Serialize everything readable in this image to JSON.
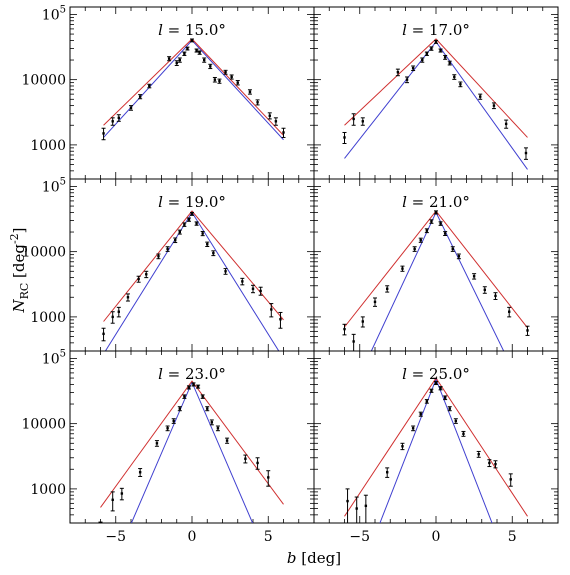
{
  "figure": {
    "xlabel": "b [deg]",
    "ylabel": "N_RC [deg^-2]"
  },
  "style": {
    "red_model": "#d03030",
    "blue_model": "#4040d0",
    "data_color": "#000000"
  },
  "chart_data": [
    {
      "type": "scatter",
      "title": "l = 15.0°",
      "xlim": [
        -8,
        8
      ],
      "ylim": [
        300,
        130000
      ],
      "yscale": "log",
      "xticks": [
        -5,
        0,
        5
      ],
      "yticks_labeled": [
        1000,
        10000,
        100000
      ],
      "points": [
        {
          "x": -5.8,
          "y": 1500,
          "err": 300
        },
        {
          "x": -5.2,
          "y": 2300,
          "err": 300
        },
        {
          "x": -4.8,
          "y": 2600,
          "err": 300
        },
        {
          "x": -4.0,
          "y": 3700,
          "err": 300
        },
        {
          "x": -3.4,
          "y": 5500,
          "err": 400
        },
        {
          "x": -2.8,
          "y": 8000,
          "err": 500
        },
        {
          "x": -1.5,
          "y": 21000,
          "err": 1500
        },
        {
          "x": -1.0,
          "y": 18000,
          "err": 1500
        },
        {
          "x": -0.8,
          "y": 20000,
          "err": 1500
        },
        {
          "x": -0.5,
          "y": 25000,
          "err": 1500
        },
        {
          "x": -0.3,
          "y": 30000,
          "err": 1500
        },
        {
          "x": 0.0,
          "y": 40000,
          "err": 2000
        },
        {
          "x": 0.3,
          "y": 28000,
          "err": 1500
        },
        {
          "x": 0.5,
          "y": 26000,
          "err": 1500
        },
        {
          "x": 0.8,
          "y": 20000,
          "err": 1500
        },
        {
          "x": 1.2,
          "y": 16000,
          "err": 1200
        },
        {
          "x": 1.5,
          "y": 10000,
          "err": 800
        },
        {
          "x": 1.8,
          "y": 9500,
          "err": 700
        },
        {
          "x": 2.2,
          "y": 13000,
          "err": 900
        },
        {
          "x": 2.6,
          "y": 11000,
          "err": 800
        },
        {
          "x": 3.0,
          "y": 9000,
          "err": 700
        },
        {
          "x": 3.8,
          "y": 6500,
          "err": 500
        },
        {
          "x": 4.3,
          "y": 4500,
          "err": 400
        },
        {
          "x": 5.1,
          "y": 2800,
          "err": 300
        },
        {
          "x": 5.5,
          "y": 2300,
          "err": 300
        },
        {
          "x": 6.0,
          "y": 1550,
          "err": 250
        }
      ],
      "red_model": {
        "peak": 42000,
        "knots": [
          {
            "x": -5.8,
            "y": 2000
          },
          {
            "x": 6.0,
            "y": 1400
          }
        ]
      },
      "blue_model": {
        "peak": 40000,
        "knots": [
          {
            "x": -5.8,
            "y": 1300
          },
          {
            "x": 6.0,
            "y": 1200
          }
        ]
      }
    },
    {
      "type": "scatter",
      "title": "l = 17.0°",
      "xlim": [
        -8,
        8
      ],
      "ylim": [
        300,
        130000
      ],
      "yscale": "log",
      "xticks": [
        -5,
        0,
        5
      ],
      "yticks_labeled": [
        1000,
        10000,
        100000
      ],
      "points": [
        {
          "x": -6.0,
          "y": 1300,
          "err": 250
        },
        {
          "x": -5.4,
          "y": 2500,
          "err": 500
        },
        {
          "x": -4.8,
          "y": 2300,
          "err": 300
        },
        {
          "x": -2.5,
          "y": 13000,
          "err": 1500
        },
        {
          "x": -1.9,
          "y": 10000,
          "err": 1000
        },
        {
          "x": -1.5,
          "y": 15000,
          "err": 1200
        },
        {
          "x": -0.9,
          "y": 20000,
          "err": 1500
        },
        {
          "x": -0.6,
          "y": 25000,
          "err": 1500
        },
        {
          "x": -0.3,
          "y": 30000,
          "err": 1800
        },
        {
          "x": 0.0,
          "y": 38000,
          "err": 2000
        },
        {
          "x": 0.3,
          "y": 28000,
          "err": 1500
        },
        {
          "x": 0.6,
          "y": 22000,
          "err": 1500
        },
        {
          "x": 0.9,
          "y": 18000,
          "err": 1200
        },
        {
          "x": 1.2,
          "y": 11000,
          "err": 900
        },
        {
          "x": 1.6,
          "y": 8500,
          "err": 700
        },
        {
          "x": 2.9,
          "y": 5500,
          "err": 500
        },
        {
          "x": 3.8,
          "y": 4000,
          "err": 400
        },
        {
          "x": 4.6,
          "y": 2100,
          "err": 300
        },
        {
          "x": 5.9,
          "y": 750,
          "err": 150
        }
      ],
      "red_model": {
        "peak": 42000,
        "knots": [
          {
            "x": -6.0,
            "y": 2000
          },
          {
            "x": 6.0,
            "y": 1300
          }
        ]
      },
      "blue_model": {
        "peak": 38000,
        "knots": [
          {
            "x": -6.0,
            "y": 620
          },
          {
            "x": 6.0,
            "y": 420
          }
        ]
      }
    },
    {
      "type": "scatter",
      "title": "l = 19.0°",
      "xlim": [
        -8,
        8
      ],
      "ylim": [
        300,
        130000
      ],
      "yscale": "log",
      "xticks": [
        -5,
        0,
        5
      ],
      "yticks_labeled": [
        1000,
        10000,
        100000
      ],
      "points": [
        {
          "x": -5.8,
          "y": 550,
          "err": 120
        },
        {
          "x": -5.2,
          "y": 1000,
          "err": 200
        },
        {
          "x": -4.8,
          "y": 1200,
          "err": 200
        },
        {
          "x": -4.2,
          "y": 2000,
          "err": 250
        },
        {
          "x": -3.5,
          "y": 3800,
          "err": 400
        },
        {
          "x": -3.0,
          "y": 4500,
          "err": 500
        },
        {
          "x": -2.2,
          "y": 8500,
          "err": 700
        },
        {
          "x": -1.6,
          "y": 11000,
          "err": 900
        },
        {
          "x": -1.1,
          "y": 15000,
          "err": 1200
        },
        {
          "x": -0.8,
          "y": 20000,
          "err": 1400
        },
        {
          "x": -0.5,
          "y": 26000,
          "err": 1600
        },
        {
          "x": -0.2,
          "y": 31000,
          "err": 1800
        },
        {
          "x": 0.0,
          "y": 38000,
          "err": 2000
        },
        {
          "x": 0.3,
          "y": 27000,
          "err": 1600
        },
        {
          "x": 0.7,
          "y": 19000,
          "err": 1400
        },
        {
          "x": 1.0,
          "y": 13000,
          "err": 1000
        },
        {
          "x": 1.4,
          "y": 9500,
          "err": 800
        },
        {
          "x": 2.2,
          "y": 5000,
          "err": 500
        },
        {
          "x": 3.3,
          "y": 3500,
          "err": 400
        },
        {
          "x": 4.0,
          "y": 2700,
          "err": 350
        },
        {
          "x": 4.5,
          "y": 2500,
          "err": 350
        },
        {
          "x": 5.2,
          "y": 1300,
          "err": 300
        },
        {
          "x": 5.8,
          "y": 920,
          "err": 250
        }
      ],
      "red_model": {
        "peak": 42000,
        "knots": [
          {
            "x": -5.8,
            "y": 850
          },
          {
            "x": 6.0,
            "y": 900
          }
        ]
      },
      "blue_model": {
        "peak": 40000,
        "knots": [
          {
            "x": -5.8,
            "y": 270
          },
          {
            "x": 6.0,
            "y": 230
          }
        ]
      }
    },
    {
      "type": "scatter",
      "title": "l = 21.0°",
      "xlim": [
        -8,
        8
      ],
      "ylim": [
        300,
        130000
      ],
      "yscale": "log",
      "xticks": [
        -5,
        0,
        5
      ],
      "yticks_labeled": [
        1000,
        10000,
        100000
      ],
      "points": [
        {
          "x": -6.0,
          "y": 650,
          "err": 120
        },
        {
          "x": -5.4,
          "y": 420,
          "err": 120
        },
        {
          "x": -4.8,
          "y": 850,
          "err": 150
        },
        {
          "x": -4.0,
          "y": 1700,
          "err": 250
        },
        {
          "x": -3.2,
          "y": 2700,
          "err": 300
        },
        {
          "x": -2.2,
          "y": 5500,
          "err": 500
        },
        {
          "x": -1.4,
          "y": 11000,
          "err": 900
        },
        {
          "x": -1.0,
          "y": 15000,
          "err": 1100
        },
        {
          "x": -0.6,
          "y": 21000,
          "err": 1400
        },
        {
          "x": -0.3,
          "y": 29000,
          "err": 1800
        },
        {
          "x": 0.0,
          "y": 40000,
          "err": 2200
        },
        {
          "x": 0.3,
          "y": 27000,
          "err": 1700
        },
        {
          "x": 0.6,
          "y": 19000,
          "err": 1300
        },
        {
          "x": 1.1,
          "y": 11000,
          "err": 900
        },
        {
          "x": 1.5,
          "y": 8500,
          "err": 700
        },
        {
          "x": 2.5,
          "y": 4200,
          "err": 400
        },
        {
          "x": 3.2,
          "y": 2600,
          "err": 300
        },
        {
          "x": 3.9,
          "y": 2100,
          "err": 250
        },
        {
          "x": 4.8,
          "y": 1200,
          "err": 200
        },
        {
          "x": 6.0,
          "y": 620,
          "err": 100
        }
      ],
      "red_model": {
        "peak": 42000,
        "knots": [
          {
            "x": -6.0,
            "y": 700
          },
          {
            "x": 6.0,
            "y": 680
          }
        ]
      },
      "blue_model": {
        "peak": 40000,
        "knots": [
          {
            "x": -4.3,
            "y": 280
          },
          {
            "x": 4.5,
            "y": 280
          }
        ]
      }
    },
    {
      "type": "scatter",
      "title": "l = 23.0°",
      "xlim": [
        -8,
        8
      ],
      "ylim": [
        300,
        130000
      ],
      "yscale": "log",
      "xticks": [
        -5,
        0,
        5
      ],
      "yticks_labeled": [
        1000,
        10000,
        100000
      ],
      "points": [
        {
          "x": -6.0,
          "y": 280,
          "err": 30
        },
        {
          "x": -5.2,
          "y": 680,
          "err": 220
        },
        {
          "x": -4.6,
          "y": 850,
          "err": 170
        },
        {
          "x": -3.4,
          "y": 1800,
          "err": 250
        },
        {
          "x": -2.3,
          "y": 5000,
          "err": 500
        },
        {
          "x": -1.6,
          "y": 8500,
          "err": 700
        },
        {
          "x": -1.2,
          "y": 11000,
          "err": 900
        },
        {
          "x": -0.8,
          "y": 17000,
          "err": 1200
        },
        {
          "x": -0.5,
          "y": 26000,
          "err": 1600
        },
        {
          "x": -0.2,
          "y": 36000,
          "err": 2000
        },
        {
          "x": 0.1,
          "y": 40000,
          "err": 2200
        },
        {
          "x": 0.4,
          "y": 37000,
          "err": 2000
        },
        {
          "x": 0.7,
          "y": 26000,
          "err": 1600
        },
        {
          "x": 1.0,
          "y": 17000,
          "err": 1200
        },
        {
          "x": 1.3,
          "y": 10500,
          "err": 900
        },
        {
          "x": 1.7,
          "y": 8500,
          "err": 700
        },
        {
          "x": 2.3,
          "y": 5500,
          "err": 500
        },
        {
          "x": 3.5,
          "y": 2900,
          "err": 400
        },
        {
          "x": 4.3,
          "y": 2500,
          "err": 500
        },
        {
          "x": 5.0,
          "y": 1500,
          "err": 400
        }
      ],
      "red_model": {
        "peak": 45000,
        "knots": [
          {
            "x": -6.0,
            "y": 520
          },
          {
            "x": 6.0,
            "y": 580
          }
        ]
      },
      "blue_model": {
        "peak": 43000,
        "knots": [
          {
            "x": -4.0,
            "y": 290
          },
          {
            "x": 4.0,
            "y": 290
          }
        ]
      }
    },
    {
      "type": "scatter",
      "title": "l = 25.0°",
      "xlim": [
        -8,
        8
      ],
      "ylim": [
        300,
        130000
      ],
      "yscale": "log",
      "xticks": [
        -5,
        0,
        5
      ],
      "yticks_labeled": [
        1000,
        10000,
        100000
      ],
      "points": [
        {
          "x": -5.8,
          "y": 650,
          "err": 350
        },
        {
          "x": -5.2,
          "y": 500,
          "err": 250
        },
        {
          "x": -4.6,
          "y": 550,
          "err": 250
        },
        {
          "x": -3.2,
          "y": 1800,
          "err": 300
        },
        {
          "x": -2.2,
          "y": 4500,
          "err": 500
        },
        {
          "x": -1.5,
          "y": 8500,
          "err": 700
        },
        {
          "x": -1.0,
          "y": 14000,
          "err": 1000
        },
        {
          "x": -0.6,
          "y": 22000,
          "err": 1400
        },
        {
          "x": -0.3,
          "y": 32000,
          "err": 1800
        },
        {
          "x": 0.0,
          "y": 42000,
          "err": 2200
        },
        {
          "x": 0.3,
          "y": 35000,
          "err": 2000
        },
        {
          "x": 0.6,
          "y": 25000,
          "err": 1600
        },
        {
          "x": 0.9,
          "y": 17000,
          "err": 1200
        },
        {
          "x": 1.3,
          "y": 11000,
          "err": 900
        },
        {
          "x": 1.8,
          "y": 7000,
          "err": 600
        },
        {
          "x": 2.8,
          "y": 3400,
          "err": 350
        },
        {
          "x": 3.5,
          "y": 2500,
          "err": 300
        },
        {
          "x": 3.9,
          "y": 2400,
          "err": 300
        },
        {
          "x": 4.9,
          "y": 1400,
          "err": 300
        }
      ],
      "red_model": {
        "peak": 50000,
        "knots": [
          {
            "x": -6.0,
            "y": 380
          },
          {
            "x": 6.0,
            "y": 380
          }
        ]
      },
      "blue_model": {
        "peak": 48000,
        "knots": [
          {
            "x": -3.7,
            "y": 290
          },
          {
            "x": 3.7,
            "y": 290
          }
        ]
      }
    }
  ]
}
